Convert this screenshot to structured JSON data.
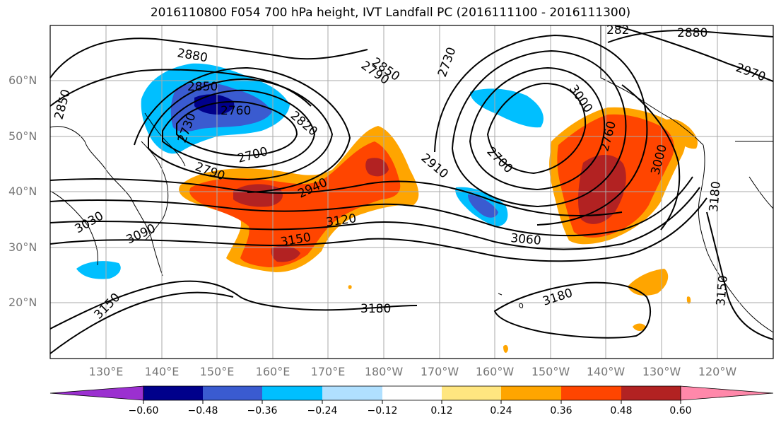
{
  "title": "2016110800 F054 700 hPa height, IVT Landfall PC (2016111100 - 2016111300)",
  "lat_labels": [
    "60°N",
    "50°N",
    "40°N",
    "30°N",
    "20°N"
  ],
  "lon_labels": [
    "130°E",
    "140°E",
    "150°E",
    "160°E",
    "170°E",
    "180°W",
    "170°W",
    "160°W",
    "150°W",
    "140°W",
    "130°W",
    "120°W"
  ],
  "contour_labels": [
    "2880",
    "2850",
    "2760",
    "2730",
    "2820",
    "2700",
    "2790",
    "2940",
    "3030",
    "3090",
    "3150",
    "3150",
    "3120",
    "3180",
    "2850",
    "2790",
    "2730",
    "2760",
    "2910",
    "2700",
    "3060",
    "3180",
    "3000",
    "2970",
    "2880",
    "282",
    "3180",
    "3150",
    "3000",
    "2850"
  ],
  "colorbar": {
    "tick_labels": [
      "−0.60",
      "−0.48",
      "−0.36",
      "−0.24",
      "−0.12",
      "0.12",
      "0.24",
      "0.36",
      "0.48",
      "0.60"
    ],
    "colors": [
      "#9b30d0",
      "#00008b",
      "#3a5bd0",
      "#00bfff",
      "#b0e0ff",
      "#ffffff",
      "#ffe680",
      "#ffa500",
      "#ff4500",
      "#b22222",
      "#ff88aa"
    ]
  },
  "colors": {
    "land_outline": "#000000",
    "grid": "#aaaaaa",
    "positive_low": "#ffa500",
    "positive_mid": "#ff4500",
    "positive_high": "#b22222",
    "negative_low": "#00bfff",
    "negative_mid": "#3a5bd0",
    "negative_high": "#00008b"
  }
}
